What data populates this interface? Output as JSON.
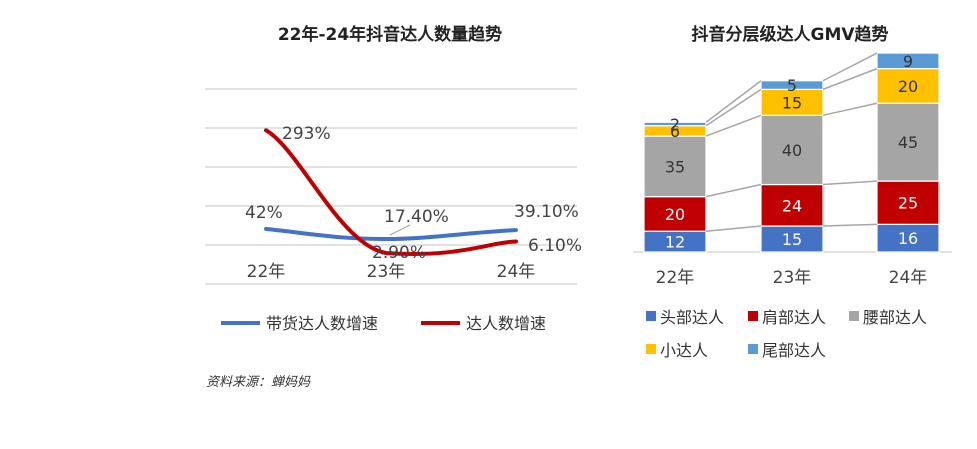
{
  "source": "资料来源：蝉妈妈",
  "chart_data": [
    {
      "type": "line",
      "title": "22年-24年抖音达人数量趋势",
      "categories": [
        "22年",
        "23年",
        "24年"
      ],
      "series": [
        {
          "name": "带货达人数增速",
          "values": [
            42,
            17.4,
            39.1
          ],
          "labels": [
            "42%",
            "17.40%",
            "39.10%"
          ],
          "color": "#4472C4"
        },
        {
          "name": "达人数增速",
          "values": [
            293,
            2.9,
            6.1
          ],
          "labels": [
            "293%",
            "2.90%",
            "6.10%"
          ],
          "color": "#C00000"
        }
      ],
      "grid": true,
      "legend": "bottom"
    },
    {
      "type": "bar",
      "stacked": true,
      "title": "抖音分层级达人GMV趋势",
      "categories": [
        "22年",
        "23年",
        "24年"
      ],
      "series": [
        {
          "name": "头部达人",
          "values": [
            12,
            15,
            16
          ],
          "color": "#4472C4"
        },
        {
          "name": "肩部达人",
          "values": [
            20,
            24,
            25
          ],
          "color": "#C00000"
        },
        {
          "name": "腰部达人",
          "values": [
            35,
            40,
            45
          ],
          "color": "#A5A5A5"
        },
        {
          "name": "小达人",
          "values": [
            6,
            15,
            20
          ],
          "color": "#FFC000"
        },
        {
          "name": "尾部达人",
          "values": [
            2,
            5,
            9
          ],
          "color": "#5B9BD5"
        }
      ],
      "legend": "bottom"
    }
  ]
}
